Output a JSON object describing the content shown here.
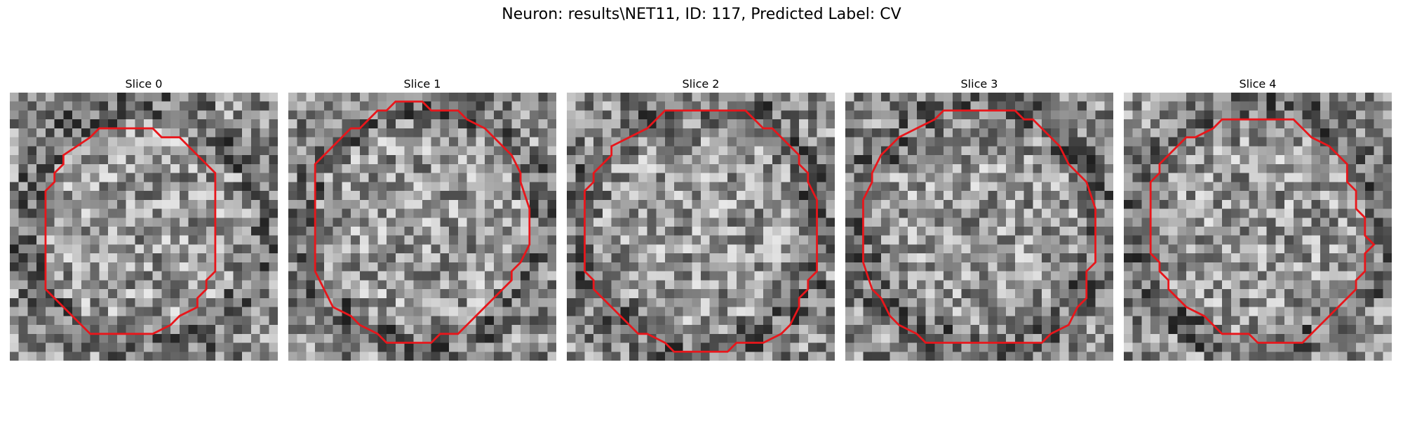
{
  "figure": {
    "title": "Neuron: results\\NET11, ID: 117, Predicted Label: CV"
  },
  "slices": [
    {
      "label": "Slice 0"
    },
    {
      "label": "Slice 1"
    },
    {
      "label": "Slice 2"
    },
    {
      "label": "Slice 3"
    },
    {
      "label": "Slice 4"
    }
  ],
  "colors": {
    "contour": "#e8161b"
  }
}
